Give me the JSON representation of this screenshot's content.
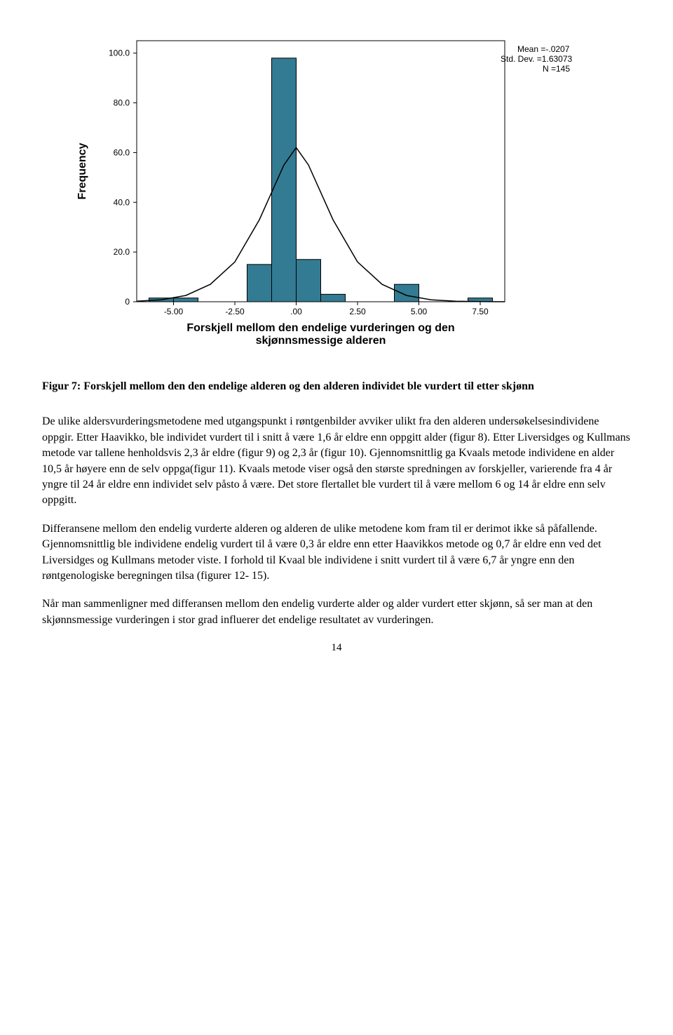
{
  "chart": {
    "type": "histogram",
    "ylabel": "Frequency",
    "xlabel_line1": "Forskjell mellom den endelige vurderingen og den",
    "xlabel_line2": "skjønnsmessige alderen",
    "plot_border_color": "#000000",
    "background_color": "#ffffff",
    "bar_fill": "#337b92",
    "bar_stroke": "#000000",
    "normal_curve_color": "#000000",
    "xlim": [
      -6.5,
      8.5
    ],
    "ylim": [
      0,
      105
    ],
    "xticks": [
      -5.0,
      -2.5,
      0.0,
      2.5,
      5.0,
      7.5
    ],
    "xtick_labels": [
      "-5.00",
      "-2.50",
      ".00",
      "2.50",
      "5.00",
      "7.50"
    ],
    "yticks": [
      0,
      20.0,
      40.0,
      60.0,
      80.0,
      100.0
    ],
    "ytick_labels": [
      "0",
      "20.0",
      "40.0",
      "60.0",
      "80.0",
      "100.0"
    ],
    "bars_x": [
      -5.5,
      -4.5,
      -1.5,
      -0.5,
      0.5,
      1.5,
      4.5,
      7.5
    ],
    "bars_h": [
      1.5,
      1.5,
      15,
      98,
      17,
      3,
      7,
      1.5
    ],
    "bar_width": 1.0,
    "stats_mean": "Mean =-.0207",
    "stats_sd": "Std. Dev. =1.63073",
    "stats_n": "N =145",
    "tick_font_size": 12,
    "title_font_size": 16,
    "curve_points": [
      [
        -6.5,
        0.2
      ],
      [
        -5.5,
        0.8
      ],
      [
        -4.5,
        2.5
      ],
      [
        -3.5,
        7
      ],
      [
        -2.5,
        16
      ],
      [
        -1.5,
        33
      ],
      [
        -0.5,
        55
      ],
      [
        0.0,
        62
      ],
      [
        0.5,
        55
      ],
      [
        1.5,
        33
      ],
      [
        2.5,
        16
      ],
      [
        3.5,
        7
      ],
      [
        4.5,
        2.5
      ],
      [
        5.5,
        0.8
      ],
      [
        6.5,
        0.2
      ],
      [
        7.5,
        0.05
      ],
      [
        8.5,
        0.01
      ]
    ]
  },
  "caption": "Figur 7: Forskjell mellom den den endelige alderen og den alderen individet ble vurdert til etter skjønn",
  "para1": "De ulike aldersvurderingsmetodene med utgangspunkt i røntgenbilder avviker ulikt fra den alderen undersøkelsesindividene oppgir.  Etter Haavikko, ble individet vurdert til i snitt å være 1,6 år eldre enn oppgitt alder (figur 8). Etter Liversidges og Kullmans metode var tallene henholdsvis 2,3 år eldre (figur 9) og 2,3 år (figur 10).  Gjennomsnittlig ga Kvaals metode individene en alder 10,5 år høyere enn de selv oppga(figur 11). Kvaals metode viser også den største spredningen av forskjeller, varierende fra 4 år yngre til 24 år eldre enn individet selv påsto å være. Det store flertallet ble vurdert til å være mellom 6 og 14 år eldre enn selv oppgitt.",
  "para2": "Differansene mellom den endelig vurderte alderen og alderen de ulike metodene kom fram til er derimot ikke så påfallende. Gjennomsnittlig ble individene endelig vurdert til å være 0,3 år eldre enn etter Haavikkos metode og 0,7 år eldre enn ved det Liversidges og Kullmans metoder viste.  I forhold til Kvaal ble individene i snitt vurdert til å være 6,7 år yngre enn den røntgenologiske beregningen tilsa (figurer 12- 15).",
  "para3": "Når man sammenligner med differansen mellom den endelig vurderte alder og alder vurdert etter skjønn, så ser man at den skjønnsmessige vurderingen i stor grad influerer det endelige resultatet av vurderingen.",
  "page_number": "14"
}
